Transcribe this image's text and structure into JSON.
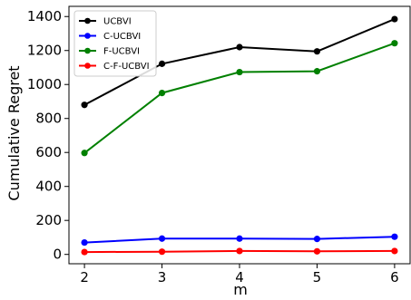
{
  "chart_data": {
    "type": "line",
    "xlabel": "m",
    "ylabel": "Cumulative Regret",
    "x": [
      2,
      3,
      4,
      5,
      6
    ],
    "xticks": [
      2,
      3,
      4,
      5,
      6
    ],
    "yticks": [
      0,
      200,
      400,
      600,
      800,
      1000,
      1200,
      1400
    ],
    "xlim": [
      1.8,
      6.2
    ],
    "ylim": [
      -55,
      1460
    ],
    "grid": false,
    "legend_position": "top-left",
    "series": [
      {
        "name": "UCBVI",
        "color": "#000000",
        "values": [
          880,
          1122,
          1220,
          1195,
          1385
        ]
      },
      {
        "name": "C-UCBVI",
        "color": "#0000ff",
        "values": [
          70,
          93,
          93,
          91,
          104
        ]
      },
      {
        "name": "F-UCBVI",
        "color": "#008000",
        "values": [
          597,
          950,
          1073,
          1078,
          1243
        ]
      },
      {
        "name": "C-F-UCBVI",
        "color": "#ff0000",
        "values": [
          14,
          16,
          20,
          18,
          20
        ]
      }
    ]
  }
}
